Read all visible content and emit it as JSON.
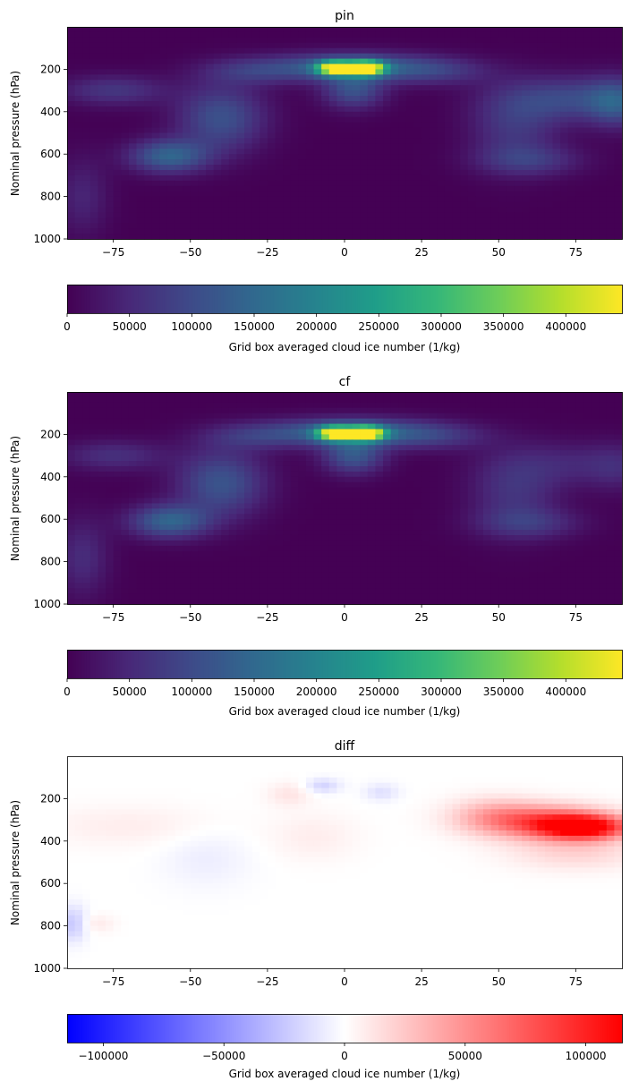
{
  "chart_data": [
    {
      "type": "heatmap",
      "title": "pin",
      "xlabel": "",
      "ylabel": "Nominal pressure (hPa)",
      "xlim": [
        -90,
        90
      ],
      "ylim": [
        1000,
        0
      ],
      "xticks": [
        "−75",
        "−50",
        "−25",
        "0",
        "25",
        "50",
        "75"
      ],
      "xtick_values": [
        -75,
        -50,
        -25,
        0,
        25,
        50,
        75
      ],
      "yticks": [
        "200",
        "400",
        "600",
        "800",
        "1000"
      ],
      "ytick_values": [
        200,
        400,
        600,
        800,
        1000
      ],
      "colormap": "viridis",
      "colorbar": {
        "label": "Grid box averaged cloud ice number (1/kg)",
        "vmin": 0,
        "vmax": 445000,
        "ticks": [
          "0",
          "50000",
          "100000",
          "150000",
          "200000",
          "250000",
          "300000",
          "350000",
          "400000"
        ],
        "tick_values": [
          0,
          50000,
          100000,
          150000,
          200000,
          250000,
          300000,
          350000,
          400000
        ]
      },
      "features": [
        {
          "lat": -3,
          "p": 195,
          "value": 400000,
          "sx": 4,
          "sp": 22
        },
        {
          "lat": 7,
          "p": 195,
          "value": 445000,
          "sx": 4,
          "sp": 22
        },
        {
          "lat": 2,
          "p": 190,
          "value": 150000,
          "sx": 18,
          "sp": 45
        },
        {
          "lat": 3,
          "p": 300,
          "value": 110000,
          "sx": 7,
          "sp": 60
        },
        {
          "lat": -30,
          "p": 210,
          "value": 60000,
          "sx": 12,
          "sp": 45
        },
        {
          "lat": 30,
          "p": 210,
          "value": 60000,
          "sx": 12,
          "sp": 45
        },
        {
          "lat": -40,
          "p": 430,
          "value": 110000,
          "sx": 10,
          "sp": 110
        },
        {
          "lat": -57,
          "p": 610,
          "value": 140000,
          "sx": 9,
          "sp": 55
        },
        {
          "lat": -75,
          "p": 300,
          "value": 70000,
          "sx": 12,
          "sp": 50
        },
        {
          "lat": -85,
          "p": 800,
          "value": 45000,
          "sx": 6,
          "sp": 130
        },
        {
          "lat": 55,
          "p": 470,
          "value": 70000,
          "sx": 10,
          "sp": 130
        },
        {
          "lat": 60,
          "p": 630,
          "value": 65000,
          "sx": 12,
          "sp": 50
        },
        {
          "lat": 75,
          "p": 340,
          "value": 95000,
          "sx": 16,
          "sp": 75
        },
        {
          "lat": 88,
          "p": 360,
          "value": 85000,
          "sx": 6,
          "sp": 80
        }
      ]
    },
    {
      "type": "heatmap",
      "title": "cf",
      "xlabel": "",
      "ylabel": "Nominal pressure (hPa)",
      "xlim": [
        -90,
        90
      ],
      "ylim": [
        1000,
        0
      ],
      "xticks": [
        "−75",
        "−50",
        "−25",
        "0",
        "25",
        "50",
        "75"
      ],
      "xtick_values": [
        -75,
        -50,
        -25,
        0,
        25,
        50,
        75
      ],
      "yticks": [
        "200",
        "400",
        "600",
        "800",
        "1000"
      ],
      "ytick_values": [
        200,
        400,
        600,
        800,
        1000
      ],
      "colormap": "viridis",
      "colorbar": {
        "label": "Grid box averaged cloud ice number (1/kg)",
        "vmin": 0,
        "vmax": 445000,
        "ticks": [
          "0",
          "50000",
          "100000",
          "150000",
          "200000",
          "250000",
          "300000",
          "350000",
          "400000"
        ],
        "tick_values": [
          0,
          50000,
          100000,
          150000,
          200000,
          250000,
          300000,
          350000,
          400000
        ]
      },
      "features": [
        {
          "lat": -3,
          "p": 195,
          "value": 390000,
          "sx": 4,
          "sp": 22
        },
        {
          "lat": 7,
          "p": 195,
          "value": 440000,
          "sx": 4,
          "sp": 22
        },
        {
          "lat": 2,
          "p": 190,
          "value": 160000,
          "sx": 18,
          "sp": 45
        },
        {
          "lat": 3,
          "p": 300,
          "value": 120000,
          "sx": 7,
          "sp": 60
        },
        {
          "lat": -30,
          "p": 210,
          "value": 55000,
          "sx": 12,
          "sp": 45
        },
        {
          "lat": 30,
          "p": 210,
          "value": 55000,
          "sx": 12,
          "sp": 45
        },
        {
          "lat": -40,
          "p": 430,
          "value": 115000,
          "sx": 10,
          "sp": 110
        },
        {
          "lat": -57,
          "p": 610,
          "value": 140000,
          "sx": 9,
          "sp": 55
        },
        {
          "lat": -75,
          "p": 300,
          "value": 60000,
          "sx": 12,
          "sp": 50
        },
        {
          "lat": -85,
          "p": 780,
          "value": 55000,
          "sx": 6,
          "sp": 130
        },
        {
          "lat": 55,
          "p": 470,
          "value": 65000,
          "sx": 10,
          "sp": 130
        },
        {
          "lat": 60,
          "p": 620,
          "value": 60000,
          "sx": 12,
          "sp": 50
        },
        {
          "lat": 75,
          "p": 340,
          "value": 45000,
          "sx": 16,
          "sp": 75
        },
        {
          "lat": 88,
          "p": 360,
          "value": 30000,
          "sx": 6,
          "sp": 80
        }
      ]
    },
    {
      "type": "heatmap",
      "title": "diff",
      "xlabel": "",
      "ylabel": "Nominal pressure (hPa)",
      "xlim": [
        -90,
        90
      ],
      "ylim": [
        1000,
        0
      ],
      "xticks": [
        "−75",
        "−50",
        "−25",
        "0",
        "25",
        "50",
        "75"
      ],
      "xtick_values": [
        -75,
        -50,
        -25,
        0,
        25,
        50,
        75
      ],
      "yticks": [
        "200",
        "400",
        "600",
        "800",
        "1000"
      ],
      "ytick_values": [
        200,
        400,
        600,
        800,
        1000
      ],
      "colormap": "bwr",
      "colorbar": {
        "label": "Grid box averaged cloud ice number (1/kg)",
        "vmin": -115000,
        "vmax": 115000,
        "ticks": [
          "−100000",
          "−50000",
          "0",
          "50000",
          "100000"
        ],
        "tick_values": [
          -100000,
          -50000,
          0,
          50000,
          100000
        ]
      },
      "features": [
        {
          "lat": 78,
          "p": 335,
          "value": 110000,
          "sx": 10,
          "sp": 40
        },
        {
          "lat": 65,
          "p": 310,
          "value": 70000,
          "sx": 14,
          "sp": 55
        },
        {
          "lat": 48,
          "p": 280,
          "value": 28000,
          "sx": 10,
          "sp": 60
        },
        {
          "lat": 75,
          "p": 450,
          "value": 20000,
          "sx": 15,
          "sp": 60
        },
        {
          "lat": -70,
          "p": 330,
          "value": 8000,
          "sx": 20,
          "sp": 70
        },
        {
          "lat": -18,
          "p": 180,
          "value": 12000,
          "sx": 5,
          "sp": 40
        },
        {
          "lat": -10,
          "p": 380,
          "value": 8000,
          "sx": 10,
          "sp": 80
        },
        {
          "lat": -7,
          "p": 140,
          "value": -20000,
          "sx": 4,
          "sp": 25
        },
        {
          "lat": 12,
          "p": 170,
          "value": -14000,
          "sx": 4,
          "sp": 30
        },
        {
          "lat": -45,
          "p": 480,
          "value": -8000,
          "sx": 10,
          "sp": 100
        },
        {
          "lat": -88,
          "p": 790,
          "value": -25000,
          "sx": 3,
          "sp": 60
        },
        {
          "lat": -80,
          "p": 790,
          "value": 9000,
          "sx": 4,
          "sp": 30
        }
      ]
    }
  ]
}
